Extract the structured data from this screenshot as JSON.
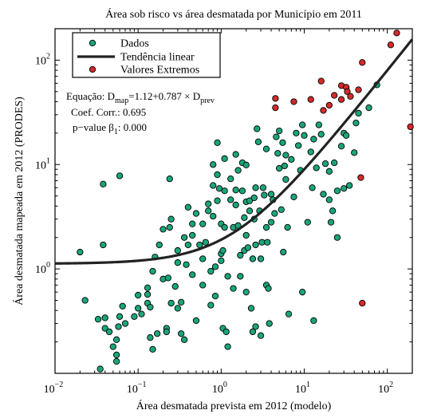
{
  "chart_data": {
    "type": "scatter",
    "title": "Área sob risco vs área desmatada por Município em 2011",
    "xlabel": "Área desmatada prevista em 2012 (modelo)",
    "ylabel": "Área desmatada mapeada em 2012 (PRODES)",
    "x_scale": "log",
    "y_scale": "log",
    "xlim": [
      0.01,
      200
    ],
    "ylim": [
      0.1,
      200
    ],
    "grid": false,
    "legend_placement": "top-left",
    "x_ticks": [
      {
        "base": "10",
        "exp": "−2"
      },
      {
        "base": "10",
        "exp": "−1"
      },
      {
        "base": "10",
        "exp": "0"
      },
      {
        "base": "10",
        "exp": "1"
      },
      {
        "base": "10",
        "exp": "2"
      }
    ],
    "y_ticks": [
      {
        "base": "10",
        "exp": "0"
      },
      {
        "base": "10",
        "exp": "1"
      },
      {
        "base": "10",
        "exp": "2"
      }
    ],
    "legend": [
      {
        "label": "Dados",
        "marker": "circle",
        "color": "#1aa67a"
      },
      {
        "label": "Tendência linear",
        "marker": "line",
        "color": "#222222"
      },
      {
        "label": "Valores Extremos",
        "marker": "circle",
        "color": "#d42a2a"
      }
    ],
    "annotations": {
      "equation": {
        "prefix": "Equação: D",
        "sub1": "map",
        "middle": "=1.12+0.787 × D",
        "sub2": "prev"
      },
      "coef": "Coef. Corr.:  0.695",
      "pvalue": {
        "prefix": "p−value  β",
        "sub": "1",
        "suffix": ":  0.000"
      }
    },
    "trend": {
      "intercept": 1.12,
      "slope": 0.787
    },
    "series": [
      {
        "name": "Dados",
        "color": "#1aa67a",
        "points": [
          [
            0.02,
            1.45
          ],
          [
            0.023,
            0.5
          ],
          [
            0.035,
            0.11
          ],
          [
            0.033,
            0.33
          ],
          [
            0.04,
            0.34
          ],
          [
            0.04,
            0.27
          ],
          [
            0.045,
            0.25
          ],
          [
            0.05,
            0.18
          ],
          [
            0.055,
            0.21
          ],
          [
            0.055,
            0.15
          ],
          [
            0.055,
            0.13
          ],
          [
            0.058,
            0.28
          ],
          [
            0.06,
            0.35
          ],
          [
            0.065,
            0.44
          ],
          [
            0.07,
            0.3
          ],
          [
            0.038,
            6.5
          ],
          [
            0.06,
            7.8
          ],
          [
            0.038,
            1.7
          ],
          [
            0.09,
            0.35
          ],
          [
            0.1,
            0.42
          ],
          [
            0.1,
            0.56
          ],
          [
            0.11,
            0.37
          ],
          [
            0.13,
            0.66
          ],
          [
            0.13,
            0.57
          ],
          [
            0.13,
            0.47
          ],
          [
            0.14,
            0.43
          ],
          [
            0.15,
            0.95
          ],
          [
            0.16,
            1.3
          ],
          [
            0.17,
            0.24
          ],
          [
            0.14,
            0.22
          ],
          [
            0.15,
            0.17
          ],
          [
            0.18,
            1.7
          ],
          [
            0.2,
            2.4
          ],
          [
            0.2,
            0.8
          ],
          [
            0.22,
            0.27
          ],
          [
            0.22,
            0.25
          ],
          [
            0.23,
            0.82
          ],
          [
            0.24,
            7.3
          ],
          [
            0.24,
            2.5
          ],
          [
            0.25,
            3.0
          ],
          [
            0.25,
            0.47
          ],
          [
            0.28,
            0.68
          ],
          [
            0.3,
            1.15
          ],
          [
            0.3,
            0.42
          ],
          [
            0.3,
            1.5
          ],
          [
            0.33,
            0.48
          ],
          [
            0.33,
            0.24
          ],
          [
            0.36,
            2.0
          ],
          [
            0.36,
            0.21
          ],
          [
            0.38,
            1.1
          ],
          [
            0.4,
            3.9
          ],
          [
            0.4,
            1.7
          ],
          [
            0.45,
            2.7
          ],
          [
            0.45,
            2.1
          ],
          [
            0.45,
            0.88
          ],
          [
            0.5,
            3.4
          ],
          [
            0.5,
            0.32
          ],
          [
            0.55,
            1.7
          ],
          [
            0.6,
            1.25
          ],
          [
            0.6,
            0.7
          ],
          [
            0.6,
            2.7
          ],
          [
            0.65,
            1.8
          ],
          [
            0.7,
            4.2
          ],
          [
            0.7,
            3.6
          ],
          [
            0.75,
            0.95
          ],
          [
            0.75,
            0.45
          ],
          [
            0.8,
            10
          ],
          [
            0.8,
            6.3
          ],
          [
            0.8,
            3.2
          ],
          [
            0.85,
            0.55
          ],
          [
            0.85,
            1.05
          ],
          [
            0.9,
            8.0
          ],
          [
            0.9,
            4.5
          ],
          [
            0.9,
            16.2
          ],
          [
            0.95,
            5.9
          ],
          [
            1.0,
            2.7
          ],
          [
            1.0,
            1.2
          ],
          [
            1.0,
            1.4
          ],
          [
            1.05,
            1.5
          ],
          [
            1.05,
            0.27
          ],
          [
            1.1,
            11.4
          ],
          [
            1.1,
            5.6
          ],
          [
            1.1,
            2.5
          ],
          [
            1.15,
            0.25
          ],
          [
            1.2,
            0.18
          ],
          [
            1.2,
            0.85
          ],
          [
            1.3,
            7.3
          ],
          [
            1.3,
            4.6
          ],
          [
            1.4,
            0.65
          ],
          [
            1.4,
            2.5
          ],
          [
            1.5,
            12.5
          ],
          [
            1.5,
            5.7
          ],
          [
            1.5,
            4.1
          ],
          [
            1.6,
            8.8
          ],
          [
            1.6,
            2.6
          ],
          [
            1.7,
            1.35
          ],
          [
            1.7,
            0.85
          ],
          [
            1.8,
            10.4
          ],
          [
            1.8,
            5.6
          ],
          [
            1.9,
            3.1
          ],
          [
            1.9,
            1.5
          ],
          [
            2.0,
            4.4
          ],
          [
            2.0,
            9.9
          ],
          [
            2.0,
            0.6
          ],
          [
            2.0,
            2.1
          ],
          [
            2.1,
            1.6
          ],
          [
            2.2,
            4.5
          ],
          [
            2.2,
            3.6
          ],
          [
            2.3,
            0.42
          ],
          [
            2.4,
            1.25
          ],
          [
            2.4,
            0.25
          ],
          [
            2.5,
            3.0
          ],
          [
            2.5,
            4.8
          ],
          [
            2.6,
            6.0
          ],
          [
            2.6,
            1.7
          ],
          [
            2.6,
            0.28
          ],
          [
            2.7,
            22
          ],
          [
            2.8,
            16.5
          ],
          [
            2.9,
            3.6
          ],
          [
            3.0,
            1.25
          ],
          [
            3.0,
            0.23
          ],
          [
            3.1,
            1.8
          ],
          [
            3.2,
            6.0
          ],
          [
            3.3,
            5.1
          ],
          [
            3.5,
            14.1
          ],
          [
            3.5,
            2.5
          ],
          [
            3.5,
            0.7
          ],
          [
            3.6,
            1.8
          ],
          [
            3.7,
            0.65
          ],
          [
            3.8,
            0.3
          ],
          [
            4.0,
            5.2
          ],
          [
            4.0,
            2.8
          ],
          [
            4.2,
            4.6
          ],
          [
            4.4,
            3.4
          ],
          [
            4.6,
            18.4
          ],
          [
            4.8,
            12.8
          ],
          [
            5.0,
            9.2
          ],
          [
            5.0,
            21
          ],
          [
            5.3,
            3.7
          ],
          [
            5.5,
            16.2
          ],
          [
            5.6,
            1.45
          ],
          [
            5.8,
            9.7
          ],
          [
            6.0,
            12.3
          ],
          [
            6.0,
            7.2
          ],
          [
            6.3,
            2.5
          ],
          [
            6.5,
            0.37
          ],
          [
            7.0,
            11.2
          ],
          [
            7.5,
            4.9
          ],
          [
            8.0,
            20
          ],
          [
            8.5,
            15.2
          ],
          [
            9.0,
            8.8
          ],
          [
            9.5,
            24
          ],
          [
            9.5,
            0.6
          ],
          [
            10,
            19
          ],
          [
            11,
            2.8
          ],
          [
            12,
            13.2
          ],
          [
            12.5,
            6.0
          ],
          [
            13,
            17.5
          ],
          [
            13,
            0.32
          ],
          [
            14,
            9.3
          ],
          [
            15,
            24
          ],
          [
            16,
            19.5
          ],
          [
            17,
            5.2
          ],
          [
            18,
            10.2
          ],
          [
            20,
            4.6
          ],
          [
            20,
            8.6
          ],
          [
            21,
            2.8
          ],
          [
            22,
            3.6
          ],
          [
            23,
            10.4
          ],
          [
            25,
            5.6
          ],
          [
            25,
            2.0
          ],
          [
            28,
            15
          ],
          [
            30,
            5.9
          ],
          [
            30,
            20
          ],
          [
            32,
            19
          ],
          [
            35,
            6.3
          ],
          [
            40,
            13
          ],
          [
            42,
            25
          ],
          [
            45,
            31
          ],
          [
            60,
            35
          ],
          [
            75,
            58
          ]
        ]
      },
      {
        "name": "Valores Extremos",
        "color": "#d42a2a",
        "points": [
          [
            4.5,
            43
          ],
          [
            4.5,
            35
          ],
          [
            7.5,
            40
          ],
          [
            12,
            42
          ],
          [
            16,
            63
          ],
          [
            17,
            33
          ],
          [
            20,
            37
          ],
          [
            23,
            46
          ],
          [
            28,
            57
          ],
          [
            28,
            42
          ],
          [
            32,
            55
          ],
          [
            33,
            50
          ],
          [
            36,
            45
          ],
          [
            45,
            52
          ],
          [
            50,
            95
          ],
          [
            48,
            7.5
          ],
          [
            50,
            0.47
          ],
          [
            110,
            140
          ],
          [
            130,
            182
          ],
          [
            190,
            23
          ]
        ]
      }
    ]
  }
}
